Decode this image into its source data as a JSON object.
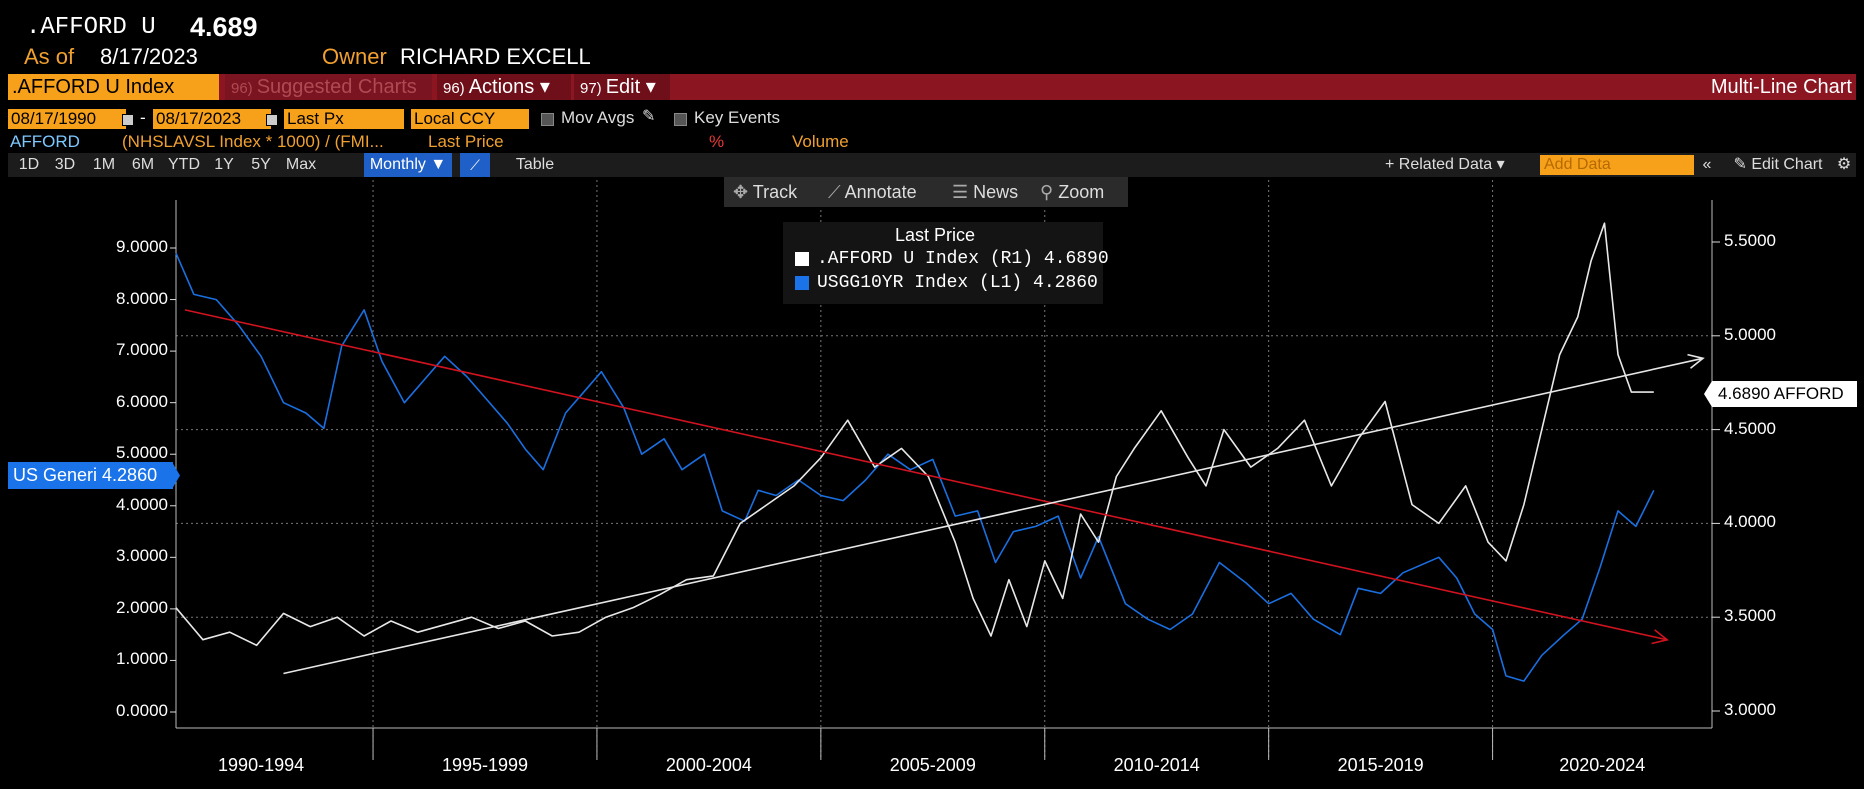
{
  "header": {
    "ticker": ".AFFORD U",
    "value": "4.689",
    "as_of_label": "As of",
    "as_of_date": "8/17/2023",
    "owner_label": "Owner",
    "owner_name": "RICHARD EXCELL"
  },
  "toolbar": {
    "index": ".AFFORD U Index",
    "suggested_num": "96)",
    "suggested": "Suggested Charts",
    "actions_num": "96)",
    "actions": "Actions ▾",
    "edit_num": "97)",
    "edit": "Edit ▾",
    "right_title": "Multi-Line Chart"
  },
  "settings": {
    "start_date": "08/17/1990",
    "dash": "-",
    "end_date": "08/17/2023",
    "price_field": "Last Px",
    "currency": "Local CCY",
    "mov_avgs": "Mov Avgs",
    "key_events": "Key Events"
  },
  "formula_row": {
    "name": "AFFORD",
    "formula": "(NHSLAVSL Index * 1000) / (FMI...",
    "field": "Last Price",
    "pct": "%",
    "volume": "Volume"
  },
  "periods": [
    "1D",
    "3D",
    "1M",
    "6M",
    "YTD",
    "1Y",
    "5Y",
    "Max"
  ],
  "period_selected": "Monthly ▼",
  "table_label": "Table",
  "right_tools": {
    "related": "+ Related Data ▾",
    "add_data_placeholder": "Add Data",
    "collapse": "«",
    "edit_chart": "✎ Edit Chart",
    "gear": "⚙"
  },
  "float_tools": {
    "track": "Track",
    "annotate": "Annotate",
    "news": "News",
    "zoom": "Zoom"
  },
  "legend": {
    "title": "Last Price",
    "rows": [
      {
        "label": ".AFFORD U Index  (R1) 4.6890",
        "color": "#ffffff"
      },
      {
        "label": "USGG10YR Index  (L1) 4.2860",
        "color": "#1a73e8"
      }
    ]
  },
  "tags": {
    "left": "US Generi 4.2860",
    "right": "4.6890 AFFORD"
  },
  "colors": {
    "afford": "#e8e8e8",
    "us10y": "#1a6fe0",
    "trend_down": "#d0131f",
    "trend_up": "#e6e6e6",
    "accent_orange": "#f7a11a",
    "toolbar_red": "#8b1622"
  },
  "chart_data": {
    "type": "line",
    "x_range": [
      1990.6,
      2024.9
    ],
    "x_tick_labels": [
      "1990-1994",
      "1995-1999",
      "2000-2004",
      "2005-2009",
      "2010-2014",
      "2015-2019",
      "2020-2024"
    ],
    "left_axis": {
      "ticks": [
        "9.0000",
        "8.0000",
        "7.0000",
        "6.0000",
        "5.0000",
        "4.0000",
        "3.0000",
        "2.0000",
        "1.0000",
        "0.0000"
      ],
      "range": [
        0,
        9
      ]
    },
    "right_axis": {
      "ticks": [
        "5.5000",
        "5.0000",
        "4.5000",
        "4.0000",
        "3.5000",
        "3.0000"
      ],
      "range": [
        3.0,
        5.5
      ]
    },
    "series": [
      {
        "name": "USGG10YR Index (L1)",
        "axis": "left",
        "x": [
          1990.6,
          1991.0,
          1991.5,
          1992.0,
          1992.5,
          1993.0,
          1993.5,
          1993.9,
          1994.3,
          1994.8,
          1995.2,
          1995.7,
          1996.2,
          1996.6,
          1997.1,
          1997.5,
          1998.0,
          1998.4,
          1998.8,
          1999.3,
          1999.8,
          2000.1,
          2000.6,
          2001.0,
          2001.5,
          2001.9,
          2002.4,
          2002.8,
          2003.3,
          2003.6,
          2004.0,
          2004.5,
          2005.0,
          2005.5,
          2006.0,
          2006.5,
          2007.0,
          2007.5,
          2008.0,
          2008.5,
          2008.9,
          2009.3,
          2009.8,
          2010.3,
          2010.8,
          2011.2,
          2011.8,
          2012.3,
          2012.8,
          2013.3,
          2013.9,
          2014.5,
          2015.0,
          2015.5,
          2016.0,
          2016.6,
          2017.0,
          2017.5,
          2018.0,
          2018.8,
          2019.2,
          2019.6,
          2020.0,
          2020.3,
          2020.7,
          2021.1,
          2021.6,
          2022.0,
          2022.4,
          2022.8,
          2023.2,
          2023.6
        ],
        "y": [
          8.9,
          8.1,
          8.0,
          7.5,
          6.9,
          6.0,
          5.8,
          5.5,
          7.1,
          7.8,
          6.8,
          6.0,
          6.5,
          6.9,
          6.5,
          6.1,
          5.6,
          5.1,
          4.7,
          5.8,
          6.3,
          6.6,
          5.9,
          5.0,
          5.3,
          4.7,
          5.0,
          3.9,
          3.7,
          4.3,
          4.2,
          4.5,
          4.2,
          4.1,
          4.5,
          5.0,
          4.7,
          4.9,
          3.8,
          3.9,
          2.9,
          3.5,
          3.6,
          3.8,
          2.6,
          3.4,
          2.1,
          1.8,
          1.6,
          1.9,
          2.9,
          2.5,
          2.1,
          2.3,
          1.8,
          1.5,
          2.4,
          2.3,
          2.7,
          3.0,
          2.6,
          1.9,
          1.6,
          0.7,
          0.6,
          1.1,
          1.5,
          1.8,
          2.8,
          3.9,
          3.6,
          4.3
        ]
      },
      {
        "name": ".AFFORD U Index (R1)",
        "axis": "right",
        "x": [
          1990.6,
          1991.2,
          1991.8,
          1992.4,
          1993.0,
          1993.6,
          1994.2,
          1994.8,
          1995.4,
          1996.0,
          1996.6,
          1997.2,
          1997.8,
          1998.4,
          1999.0,
          1999.6,
          2000.2,
          2000.8,
          2001.4,
          2002.0,
          2002.6,
          2003.2,
          2003.8,
          2004.4,
          2005.0,
          2005.6,
          2006.2,
          2006.8,
          2007.4,
          2008.0,
          2008.4,
          2008.8,
          2009.2,
          2009.6,
          2010.0,
          2010.4,
          2010.8,
          2011.2,
          2011.6,
          2012.0,
          2012.6,
          2013.2,
          2013.6,
          2014.0,
          2014.6,
          2015.2,
          2015.8,
          2016.4,
          2017.0,
          2017.6,
          2018.2,
          2018.8,
          2019.4,
          2019.9,
          2020.3,
          2020.7,
          2021.1,
          2021.5,
          2021.9,
          2022.2,
          2022.5,
          2022.8,
          2023.1,
          2023.6
        ],
        "y": [
          3.55,
          3.38,
          3.42,
          3.35,
          3.52,
          3.45,
          3.5,
          3.4,
          3.48,
          3.42,
          3.46,
          3.5,
          3.44,
          3.48,
          3.4,
          3.42,
          3.5,
          3.55,
          3.62,
          3.7,
          3.72,
          4.0,
          4.1,
          4.2,
          4.35,
          4.55,
          4.3,
          4.4,
          4.25,
          3.9,
          3.6,
          3.4,
          3.7,
          3.45,
          3.8,
          3.6,
          4.05,
          3.9,
          4.25,
          4.4,
          4.6,
          4.35,
          4.2,
          4.5,
          4.3,
          4.4,
          4.55,
          4.2,
          4.45,
          4.65,
          4.1,
          4.0,
          4.2,
          3.9,
          3.8,
          4.1,
          4.5,
          4.9,
          5.1,
          5.4,
          5.6,
          4.9,
          4.7,
          4.7
        ]
      }
    ],
    "trendlines": [
      {
        "name": "down",
        "axis": "left",
        "x": [
          1990.8,
          2023.9
        ],
        "y": [
          7.8,
          1.4
        ]
      },
      {
        "name": "up",
        "axis": "right",
        "x": [
          1993.0,
          2024.7
        ],
        "y": [
          3.2,
          4.88
        ]
      }
    ]
  }
}
